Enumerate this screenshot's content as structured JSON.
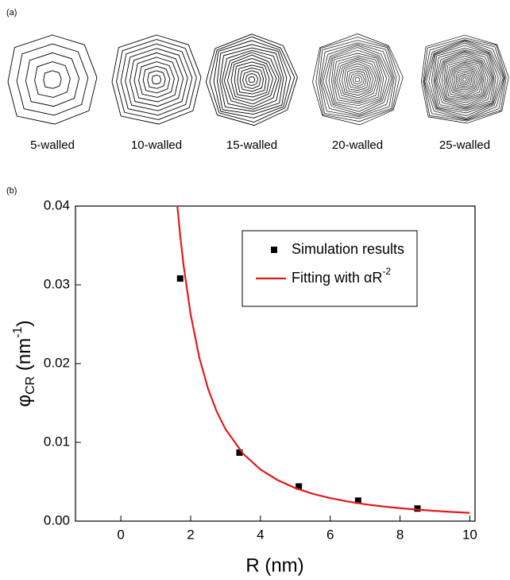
{
  "panel_a": {
    "label": "(a)",
    "items": [
      {
        "label": "5-walled"
      },
      {
        "label": "10-walled"
      },
      {
        "label": "15-walled"
      },
      {
        "label": "20-walled"
      },
      {
        "label": "25-walled"
      }
    ]
  },
  "chart_data": {
    "type": "scatter",
    "panel_label": "(b)",
    "xlabel": "R (nm)",
    "ylabel": "φ",
    "ylabel_sub": "CR",
    "ylabel_mid": " (nm",
    "ylabel_sup": "-1",
    "ylabel_end": ")",
    "xlim": [
      -1.3,
      10.15
    ],
    "ylim": [
      0,
      0.04
    ],
    "xticks": [
      0,
      2,
      4,
      6,
      8,
      10
    ],
    "yticks": [
      {
        "value": 0,
        "label": "0.00"
      },
      0.01,
      0.02,
      0.03,
      0.04
    ],
    "legend": "upper right",
    "series": [
      {
        "name": "Simulation results",
        "style": "marker",
        "color": "#000000",
        "x": [
          1.7,
          3.4,
          5.1,
          6.8,
          8.5
        ],
        "values": [
          0.0308,
          0.0087,
          0.0044,
          0.0026,
          0.0016
        ]
      },
      {
        "name": "Fitting with αR",
        "name_sup": "-2",
        "style": "line",
        "color": "#e31a1c",
        "x": [
          1.62,
          1.7,
          1.8,
          2,
          2.25,
          2.5,
          2.75,
          3,
          3.5,
          4,
          4.5,
          5,
          5.5,
          6,
          6.5,
          7,
          7.5,
          8,
          8.5,
          9,
          9.5,
          10
        ],
        "values": [
          0.04,
          0.0363,
          0.0324,
          0.02625,
          0.02074,
          0.0168,
          0.01388,
          0.01167,
          0.00857,
          0.00656,
          0.00519,
          0.0042,
          0.00347,
          0.00292,
          0.00249,
          0.00214,
          0.00187,
          0.00164,
          0.00145,
          0.0013,
          0.00116,
          0.00105
        ]
      }
    ]
  }
}
